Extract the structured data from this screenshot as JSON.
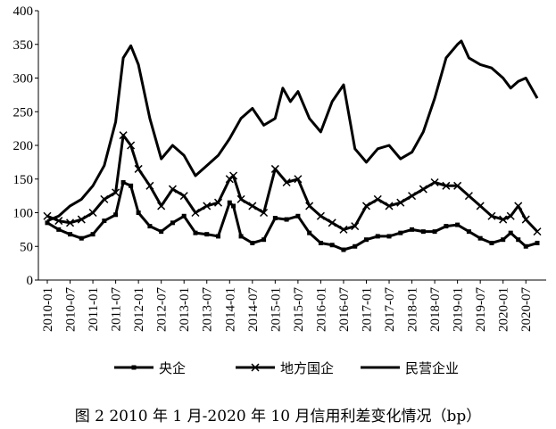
{
  "caption": "图 2 2010 年 1 月-2020 年 10 月信用利差变化情况（bp）",
  "chart_data": {
    "type": "line",
    "title": "",
    "xlabel": "",
    "ylabel": "",
    "ylim": [
      0,
      400
    ],
    "yticks": [
      0,
      50,
      100,
      150,
      200,
      250,
      300,
      350,
      400
    ],
    "x_tick_labels": [
      "2010-01",
      "2010-07",
      "2011-01",
      "2011-07",
      "2012-01",
      "2012-07",
      "2013-01",
      "2013-07",
      "2014-01",
      "2014-07",
      "2015-01",
      "2015-07",
      "2016-01",
      "2016-07",
      "2017-01",
      "2017-07",
      "2018-01",
      "2018-07",
      "2019-01",
      "2019-07",
      "2020-01",
      "2020-07"
    ],
    "x_start": "2010-01",
    "x_end": "2020-10",
    "legend_position": "bottom",
    "grid": false,
    "series": [
      {
        "name": "央企",
        "marker": "square",
        "color": "#000000",
        "points": [
          [
            "2010-01",
            85
          ],
          [
            "2010-04",
            75
          ],
          [
            "2010-07",
            68
          ],
          [
            "2010-10",
            62
          ],
          [
            "2011-01",
            68
          ],
          [
            "2011-04",
            88
          ],
          [
            "2011-07",
            97
          ],
          [
            "2011-09",
            145
          ],
          [
            "2011-11",
            140
          ],
          [
            "2012-01",
            100
          ],
          [
            "2012-04",
            80
          ],
          [
            "2012-07",
            72
          ],
          [
            "2012-10",
            85
          ],
          [
            "2013-01",
            95
          ],
          [
            "2013-04",
            70
          ],
          [
            "2013-07",
            68
          ],
          [
            "2013-10",
            65
          ],
          [
            "2014-01",
            115
          ],
          [
            "2014-02",
            110
          ],
          [
            "2014-04",
            65
          ],
          [
            "2014-07",
            55
          ],
          [
            "2014-10",
            60
          ],
          [
            "2015-01",
            92
          ],
          [
            "2015-04",
            90
          ],
          [
            "2015-07",
            95
          ],
          [
            "2015-10",
            70
          ],
          [
            "2016-01",
            55
          ],
          [
            "2016-04",
            52
          ],
          [
            "2016-07",
            45
          ],
          [
            "2016-10",
            50
          ],
          [
            "2017-01",
            60
          ],
          [
            "2017-04",
            65
          ],
          [
            "2017-07",
            65
          ],
          [
            "2017-10",
            70
          ],
          [
            "2018-01",
            75
          ],
          [
            "2018-04",
            72
          ],
          [
            "2018-07",
            72
          ],
          [
            "2018-10",
            80
          ],
          [
            "2019-01",
            82
          ],
          [
            "2019-04",
            72
          ],
          [
            "2019-07",
            62
          ],
          [
            "2019-10",
            55
          ],
          [
            "2020-01",
            60
          ],
          [
            "2020-03",
            70
          ],
          [
            "2020-05",
            60
          ],
          [
            "2020-07",
            50
          ],
          [
            "2020-10",
            55
          ]
        ]
      },
      {
        "name": "地方国企",
        "marker": "x",
        "color": "#000000",
        "points": [
          [
            "2010-01",
            95
          ],
          [
            "2010-04",
            88
          ],
          [
            "2010-07",
            85
          ],
          [
            "2010-10",
            90
          ],
          [
            "2011-01",
            100
          ],
          [
            "2011-04",
            120
          ],
          [
            "2011-07",
            130
          ],
          [
            "2011-09",
            215
          ],
          [
            "2011-11",
            200
          ],
          [
            "2012-01",
            165
          ],
          [
            "2012-04",
            140
          ],
          [
            "2012-07",
            110
          ],
          [
            "2012-10",
            135
          ],
          [
            "2013-01",
            125
          ],
          [
            "2013-04",
            100
          ],
          [
            "2013-07",
            110
          ],
          [
            "2013-10",
            115
          ],
          [
            "2014-01",
            150
          ],
          [
            "2014-02",
            155
          ],
          [
            "2014-04",
            120
          ],
          [
            "2014-07",
            110
          ],
          [
            "2014-10",
            100
          ],
          [
            "2015-01",
            165
          ],
          [
            "2015-04",
            145
          ],
          [
            "2015-07",
            150
          ],
          [
            "2015-10",
            110
          ],
          [
            "2016-01",
            95
          ],
          [
            "2016-04",
            85
          ],
          [
            "2016-07",
            75
          ],
          [
            "2016-10",
            80
          ],
          [
            "2017-01",
            110
          ],
          [
            "2017-04",
            120
          ],
          [
            "2017-07",
            110
          ],
          [
            "2017-10",
            115
          ],
          [
            "2018-01",
            125
          ],
          [
            "2018-04",
            135
          ],
          [
            "2018-07",
            145
          ],
          [
            "2018-10",
            140
          ],
          [
            "2019-01",
            140
          ],
          [
            "2019-04",
            125
          ],
          [
            "2019-07",
            110
          ],
          [
            "2019-10",
            95
          ],
          [
            "2020-01",
            90
          ],
          [
            "2020-03",
            95
          ],
          [
            "2020-05",
            110
          ],
          [
            "2020-07",
            90
          ],
          [
            "2020-10",
            72
          ]
        ]
      },
      {
        "name": "民营企业",
        "marker": "none",
        "color": "#000000",
        "points": [
          [
            "2010-01",
            88
          ],
          [
            "2010-04",
            95
          ],
          [
            "2010-07",
            110
          ],
          [
            "2010-10",
            120
          ],
          [
            "2011-01",
            140
          ],
          [
            "2011-04",
            170
          ],
          [
            "2011-07",
            235
          ],
          [
            "2011-09",
            330
          ],
          [
            "2011-11",
            348
          ],
          [
            "2012-01",
            320
          ],
          [
            "2012-04",
            240
          ],
          [
            "2012-07",
            180
          ],
          [
            "2012-10",
            200
          ],
          [
            "2013-01",
            185
          ],
          [
            "2013-04",
            155
          ],
          [
            "2013-07",
            170
          ],
          [
            "2013-10",
            185
          ],
          [
            "2014-01",
            210
          ],
          [
            "2014-04",
            240
          ],
          [
            "2014-07",
            255
          ],
          [
            "2014-10",
            230
          ],
          [
            "2015-01",
            240
          ],
          [
            "2015-03",
            285
          ],
          [
            "2015-05",
            265
          ],
          [
            "2015-07",
            280
          ],
          [
            "2015-10",
            240
          ],
          [
            "2016-01",
            220
          ],
          [
            "2016-04",
            265
          ],
          [
            "2016-07",
            290
          ],
          [
            "2016-10",
            195
          ],
          [
            "2017-01",
            175
          ],
          [
            "2017-04",
            195
          ],
          [
            "2017-07",
            200
          ],
          [
            "2017-10",
            180
          ],
          [
            "2018-01",
            190
          ],
          [
            "2018-04",
            220
          ],
          [
            "2018-07",
            270
          ],
          [
            "2018-10",
            330
          ],
          [
            "2019-01",
            350
          ],
          [
            "2019-02",
            355
          ],
          [
            "2019-04",
            330
          ],
          [
            "2019-07",
            320
          ],
          [
            "2019-10",
            315
          ],
          [
            "2020-01",
            300
          ],
          [
            "2020-03",
            285
          ],
          [
            "2020-05",
            295
          ],
          [
            "2020-07",
            300
          ],
          [
            "2020-10",
            270
          ]
        ]
      }
    ]
  }
}
